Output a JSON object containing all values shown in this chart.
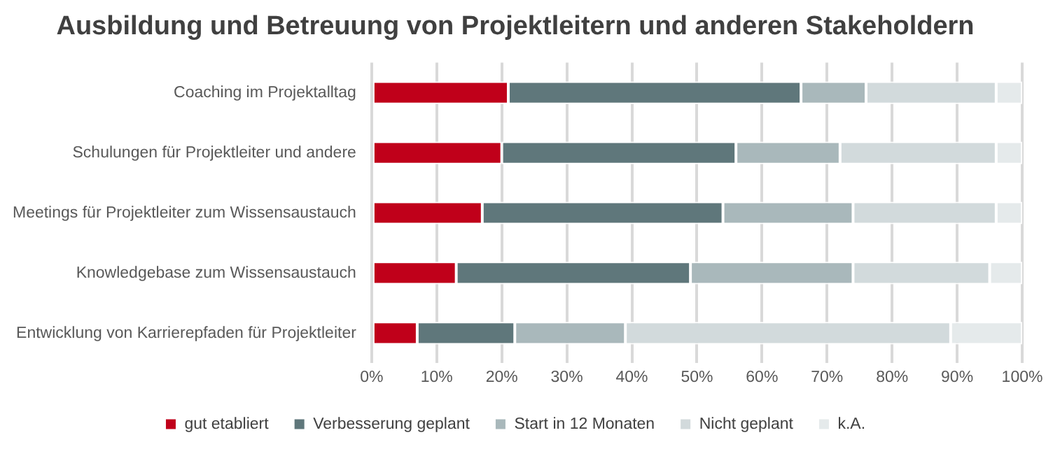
{
  "chart_data": {
    "type": "bar",
    "orientation": "horizontal",
    "stacked": true,
    "title": "Ausbildung und Betreuung von Projektleitern und anderen Stakeholdern",
    "categories": [
      "Coaching im Projektalltag",
      "Schulungen für Projektleiter und andere",
      "Meetings für Projektleiter zum Wissensaustauch",
      "Knowledgebase zum Wissensaustauch",
      "Entwicklung von Karrierepfaden für Projektleiter"
    ],
    "series": [
      {
        "name": "gut etabliert",
        "color": "#c0001a",
        "values": [
          21,
          20,
          17,
          13,
          7
        ]
      },
      {
        "name": "Verbesserung geplant",
        "color": "#5f777b",
        "values": [
          45,
          36,
          37,
          36,
          15
        ]
      },
      {
        "name": "Start in 12 Monaten",
        "color": "#a9b8bb",
        "values": [
          10,
          16,
          20,
          25,
          17
        ]
      },
      {
        "name": "Nicht geplant",
        "color": "#d2dadc",
        "values": [
          20,
          24,
          22,
          21,
          50
        ]
      },
      {
        "name": "k.A.",
        "color": "#e5eaeb",
        "values": [
          4,
          4,
          4,
          5,
          11
        ]
      }
    ],
    "xlim": [
      0,
      100
    ],
    "xticks": [
      {
        "value": 0,
        "label": "0%"
      },
      {
        "value": 10,
        "label": "10%"
      },
      {
        "value": 20,
        "label": "20%"
      },
      {
        "value": 30,
        "label": "30%"
      },
      {
        "value": 40,
        "label": "40%"
      },
      {
        "value": 50,
        "label": "50%"
      },
      {
        "value": 60,
        "label": "60%"
      },
      {
        "value": 70,
        "label": "70%"
      },
      {
        "value": 80,
        "label": "80%"
      },
      {
        "value": 90,
        "label": "90%"
      },
      {
        "value": 100,
        "label": "100%"
      }
    ],
    "grid": "x",
    "legend": "bottom"
  }
}
